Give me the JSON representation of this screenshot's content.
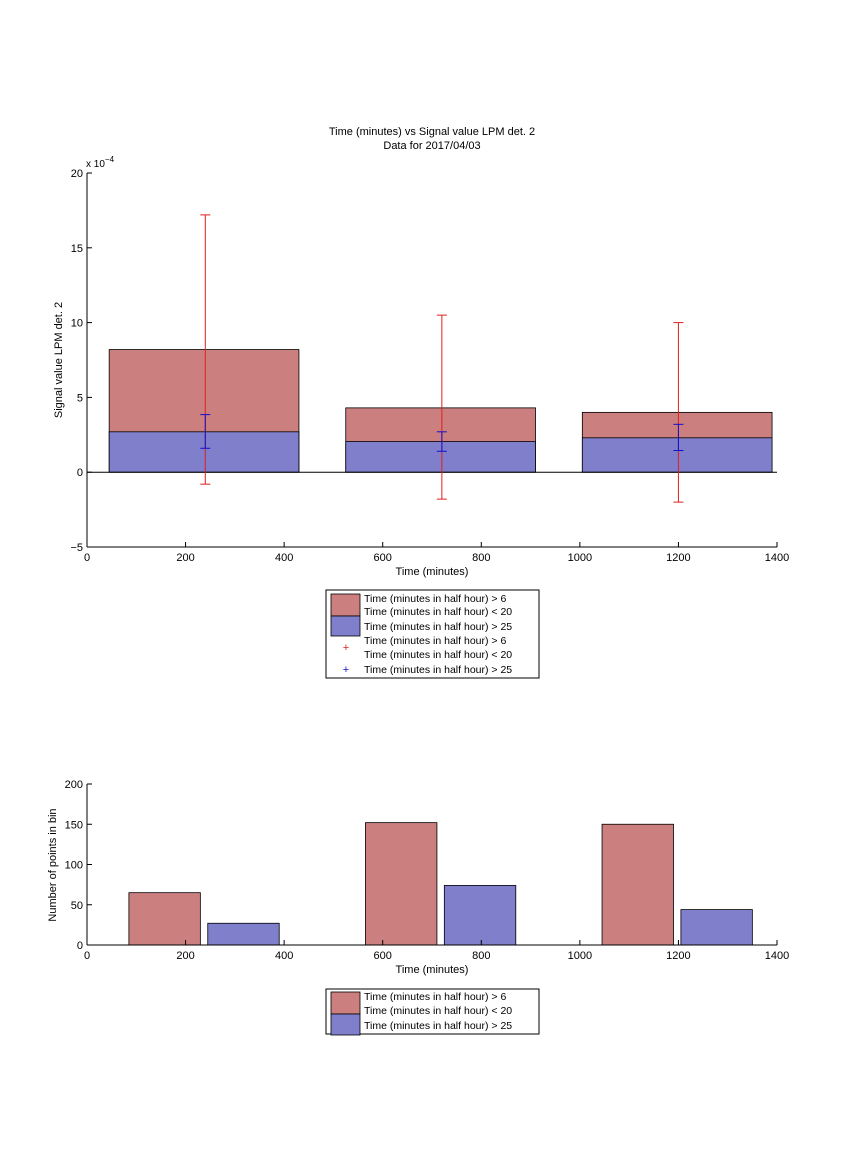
{
  "colors": {
    "red_bar": "#cc7f7f",
    "blue_bar": "#7f7fcc",
    "red_err": "#e0201c",
    "blue_err": "#1010cc",
    "axis": "#000000"
  },
  "chart_data": [
    {
      "type": "bar",
      "title": "Time (minutes) vs Signal value LPM det. 2",
      "subtitle": "Data for 2017/04/03",
      "xlabel": "Time (minutes)",
      "ylabel": "Signal value LPM det. 2",
      "exponent_label": "x 10",
      "exponent_power": "−4",
      "xlim": [
        0,
        1400
      ],
      "ylim": [
        -5,
        20
      ],
      "xticks": [
        0,
        200,
        400,
        600,
        800,
        1000,
        1200,
        1400
      ],
      "yticks": [
        -5,
        0,
        5,
        10,
        15,
        20
      ],
      "bins": [
        {
          "x0": 45,
          "x1": 430,
          "center": 240
        },
        {
          "x0": 525,
          "x1": 910,
          "center": 720
        },
        {
          "x0": 1005,
          "x1": 1390,
          "center": 1200
        }
      ],
      "series": [
        {
          "name": "Time (minutes in half hour) > 6",
          "name2": "Time (minutes in half hour) < 20",
          "color_key": "red_bar",
          "values": [
            8.2,
            4.3,
            4.0
          ]
        },
        {
          "name": "Time (minutes in half hour) > 25",
          "color_key": "blue_bar",
          "values": [
            2.7,
            2.05,
            2.3
          ]
        }
      ],
      "errorbars": [
        {
          "name": "Time (minutes in half hour) > 6",
          "name2": "Time (minutes in half hour) < 20",
          "color_key": "red_err",
          "x": [
            240,
            720,
            1200
          ],
          "lower": [
            -0.8,
            -1.8,
            -2.0
          ],
          "upper": [
            17.2,
            10.5,
            10.0
          ]
        },
        {
          "name": "Time (minutes in half hour) > 25",
          "color_key": "blue_err",
          "x": [
            240,
            720,
            1200
          ],
          "lower": [
            1.6,
            1.4,
            1.45
          ],
          "upper": [
            3.85,
            2.7,
            3.2
          ]
        }
      ],
      "legend": "below"
    },
    {
      "type": "bar",
      "xlabel": "Time (minutes)",
      "ylabel": "Number of points in bin",
      "xlim": [
        0,
        1400
      ],
      "ylim": [
        0,
        200
      ],
      "xticks": [
        0,
        200,
        400,
        600,
        800,
        1000,
        1200,
        1400
      ],
      "yticks": [
        0,
        50,
        100,
        150,
        200
      ],
      "series": [
        {
          "name": "Time (minutes in half hour) > 6",
          "name2": "Time (minutes in half hour) < 20",
          "color_key": "red_bar",
          "bars": [
            {
              "x0": 85,
              "x1": 230,
              "value": 65
            },
            {
              "x0": 565,
              "x1": 710,
              "value": 152
            },
            {
              "x0": 1045,
              "x1": 1190,
              "value": 150
            }
          ]
        },
        {
          "name": "Time (minutes in half hour) > 25",
          "color_key": "blue_bar",
          "bars": [
            {
              "x0": 245,
              "x1": 390,
              "value": 27
            },
            {
              "x0": 725,
              "x1": 870,
              "value": 74
            },
            {
              "x0": 1205,
              "x1": 1350,
              "value": 44
            }
          ]
        }
      ],
      "legend": "below"
    }
  ]
}
